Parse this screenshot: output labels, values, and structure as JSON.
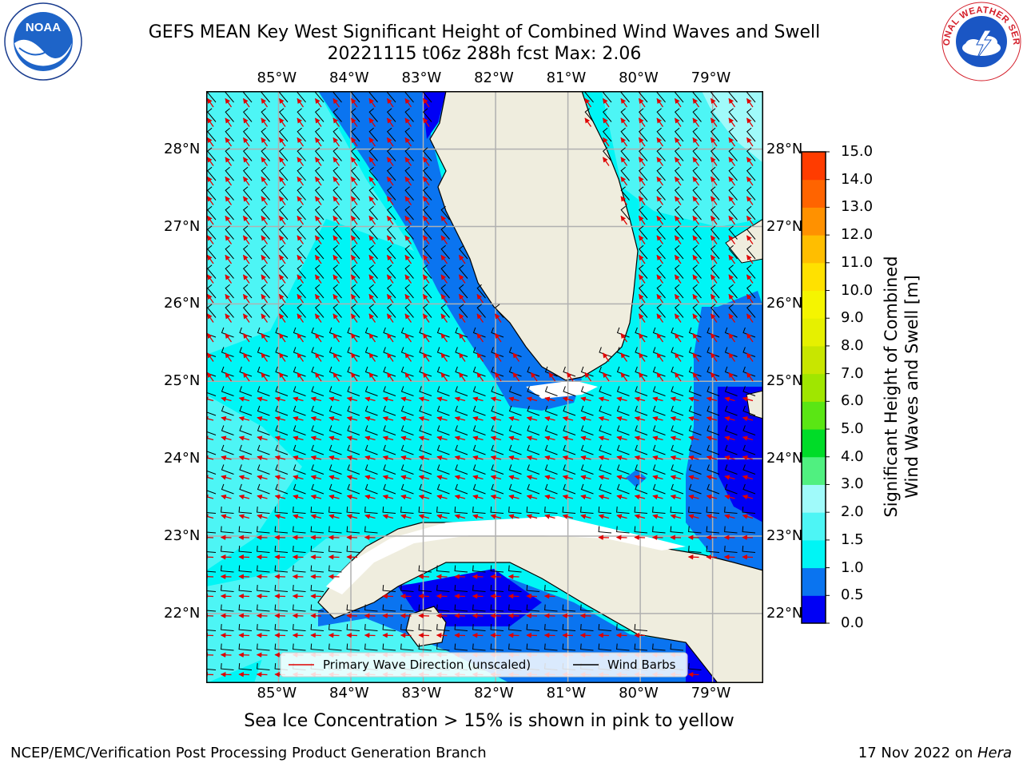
{
  "title": {
    "line1": "GEFS MEAN Key West Significant Height of Combined Wind Waves and Swell",
    "line2": "20221115 t06z 288h fcst   Max: 2.06"
  },
  "logos": {
    "left": "noaa-logo",
    "left_text": "NOAA",
    "right": "nws-logo",
    "right_text": "NATIONAL WEATHER SERVICE"
  },
  "map": {
    "lon_range": [
      -86.0,
      -78.3
    ],
    "lat_range": [
      21.1,
      28.75
    ],
    "lon_ticks": [
      "85°W",
      "84°W",
      "83°W",
      "82°W",
      "81°W",
      "80°W",
      "79°W"
    ],
    "lon_tick_values": [
      -85,
      -84,
      -83,
      -82,
      -81,
      -80,
      -79
    ],
    "lat_ticks": [
      "28°N",
      "27°N",
      "26°N",
      "25°N",
      "24°N",
      "23°N",
      "22°N"
    ],
    "lat_tick_values": [
      28,
      27,
      26,
      25,
      24,
      23,
      22
    ],
    "land_color": "#efedde",
    "grid_color": "#b0b0b0",
    "legend": {
      "primary_wave": "Primary Wave Direction (unscaled)",
      "primary_wave_color": "#e00000",
      "wind_barbs": "Wind Barbs",
      "wind_barbs_color": "#000000"
    }
  },
  "colorbar": {
    "title_line1": "Significant Height of Combined",
    "title_line2": "Wind Waves and Swell [m]",
    "levels": [
      "0.0",
      "0.5",
      "1.0",
      "1.5",
      "2.0",
      "3.0",
      "4.0",
      "5.0",
      "6.0",
      "7.0",
      "8.0",
      "9.0",
      "10.0",
      "11.0",
      "12.0",
      "13.0",
      "14.0",
      "15.0"
    ],
    "colors": [
      "#0000f5",
      "#0a74f0",
      "#00f5f5",
      "#4df5f5",
      "#a0fafa",
      "#50f080",
      "#00dc28",
      "#5ae614",
      "#a0e600",
      "#c8e600",
      "#e6f000",
      "#f5f500",
      "#ffe100",
      "#ffbe00",
      "#ff9100",
      "#ff6400",
      "#ff3c00",
      "#ff0000"
    ]
  },
  "ice_note": "Sea Ice Concentration > 15% is shown in pink to yellow",
  "footer": {
    "left": "NCEP/EMC/Verification Post Processing Product Generation Branch",
    "right_prefix": "17 Nov 2022 on ",
    "right_host": "Hera"
  }
}
